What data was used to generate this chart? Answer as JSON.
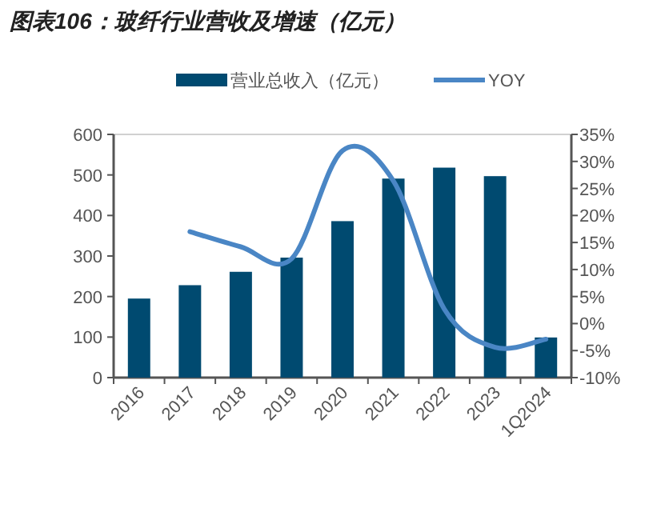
{
  "chart_data": {
    "type": "bar",
    "title": "图表106：玻纤行业营收及增速（亿元）",
    "categories": [
      "2016",
      "2017",
      "2018",
      "2019",
      "2020",
      "2021",
      "2022",
      "2023",
      "1Q2024"
    ],
    "series": [
      {
        "name": "营业总收入（亿元）",
        "color": "#004a70",
        "values": [
          195,
          228,
          261,
          296,
          386,
          491,
          518,
          497,
          99
        ]
      },
      {
        "name": "YOY",
        "type": "line",
        "axis": "y2",
        "color": "#4a86c5",
        "values": [
          null,
          17,
          14.2,
          12,
          32,
          26.4,
          2.7,
          -4.4,
          -2.9
        ]
      }
    ],
    "ylim": [
      0,
      600
    ],
    "yticks": [
      0,
      100,
      200,
      300,
      400,
      500,
      600
    ],
    "y2lim": [
      -10,
      35
    ],
    "y2ticks": [
      {
        "value": -10,
        "label": "-10%"
      },
      {
        "value": -5,
        "label": "-5%"
      },
      {
        "value": 0,
        "label": "0%"
      },
      {
        "value": 5,
        "label": "5%"
      },
      {
        "value": 10,
        "label": "10%"
      },
      {
        "value": 15,
        "label": "15%"
      },
      {
        "value": 20,
        "label": "20%"
      },
      {
        "value": 25,
        "label": "25%"
      },
      {
        "value": 30,
        "label": "30%"
      },
      {
        "value": 35,
        "label": "35%"
      }
    ],
    "legend": "top",
    "marker": "none",
    "line_style": "solid"
  }
}
